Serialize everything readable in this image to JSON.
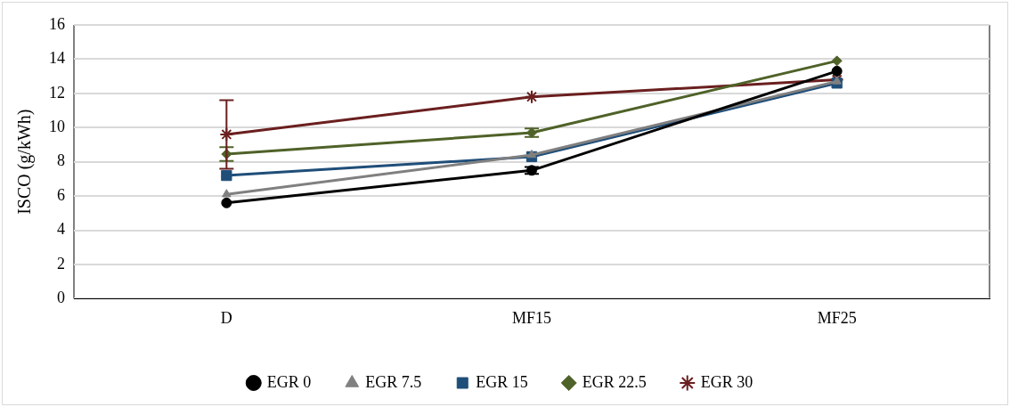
{
  "chart_data": {
    "type": "line",
    "ylabel": "ISCO (g/kWh)",
    "categories": [
      "D",
      "MF15",
      "MF25"
    ],
    "series": [
      {
        "name": "EGR 0",
        "color": "#000000",
        "marker": "circle",
        "values": [
          5.6,
          7.5,
          13.3
        ],
        "errors": [
          null,
          0.2,
          null
        ]
      },
      {
        "name": "EGR 7.5",
        "color": "#808080",
        "marker": "triangle",
        "values": [
          6.1,
          8.4,
          12.7
        ]
      },
      {
        "name": "EGR 15",
        "color": "#1f4e79",
        "marker": "square",
        "values": [
          7.2,
          8.3,
          12.6
        ]
      },
      {
        "name": "EGR 22.5",
        "color": "#4f6228",
        "marker": "diamond",
        "values": [
          8.45,
          9.7,
          13.9
        ],
        "errors": [
          0.4,
          0.25,
          null
        ]
      },
      {
        "name": "EGR 30",
        "color": "#6b1f1f",
        "marker": "cross",
        "values": [
          9.6,
          11.8,
          12.8
        ],
        "errors": [
          2,
          null,
          null
        ]
      }
    ],
    "ylim": [
      0,
      16
    ],
    "yticks": [
      0,
      2,
      4,
      6,
      8,
      10,
      12,
      14,
      16
    ],
    "grid": "y",
    "legend": "bottom",
    "line_style": "solid"
  }
}
